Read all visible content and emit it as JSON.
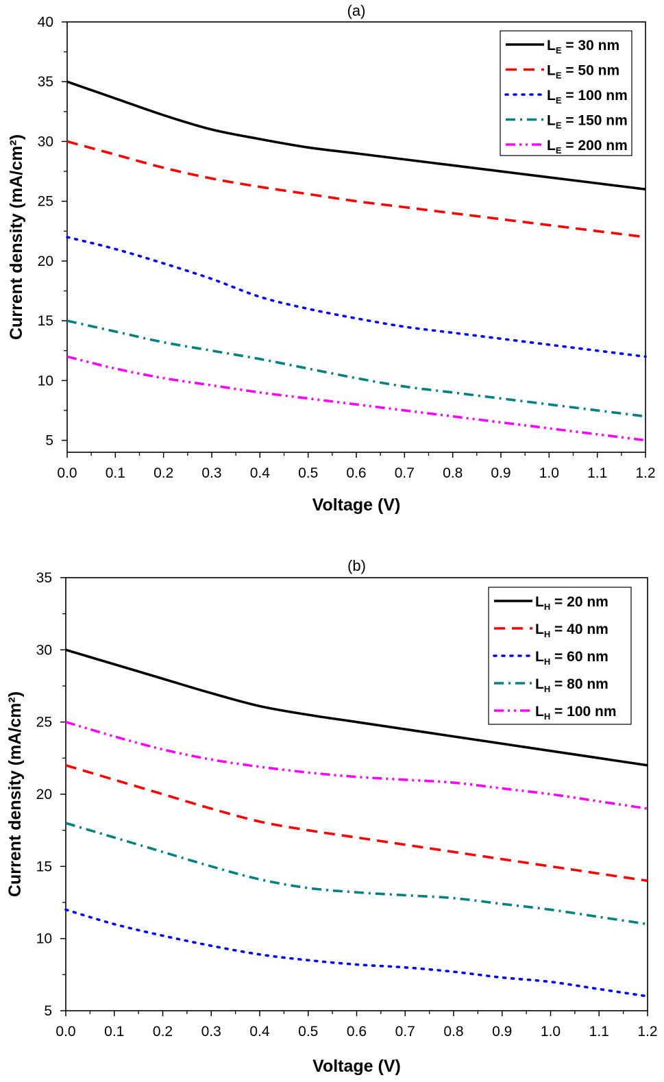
{
  "chart_data": [
    {
      "type": "line",
      "title": "(a)",
      "xlabel": "Voltage (V)",
      "ylabel": "Current density (mA/cm²)",
      "xlim": [
        0.0,
        1.2
      ],
      "ylim": [
        4,
        40
      ],
      "xticks": [
        "0.0",
        "0.1",
        "0.2",
        "0.3",
        "0.4",
        "0.5",
        "0.6",
        "0.7",
        "0.8",
        "0.9",
        "1.0",
        "1.1",
        "1.2"
      ],
      "yticks": [
        "5",
        "10",
        "15",
        "20",
        "25",
        "30",
        "35",
        "40"
      ],
      "legend_position": "top-right",
      "legend_var": "L",
      "legend_sub": "E",
      "x": [
        0.0,
        0.1,
        0.2,
        0.3,
        0.4,
        0.5,
        0.6,
        0.7,
        0.8,
        0.9,
        1.0,
        1.1,
        1.2
      ],
      "series": [
        {
          "name": "LE = 30 nm",
          "value_text": " = 30 nm",
          "color": "#000000",
          "style": "solid",
          "values": [
            35.0,
            33.6,
            32.2,
            31.0,
            30.2,
            29.5,
            29.0,
            28.5,
            28.0,
            27.5,
            27.0,
            26.5,
            26.0
          ]
        },
        {
          "name": "LE = 50 nm",
          "value_text": " = 50 nm",
          "color": "#ff0000",
          "style": "dash",
          "values": [
            30.0,
            28.9,
            27.8,
            26.9,
            26.2,
            25.6,
            25.0,
            24.5,
            24.0,
            23.5,
            23.0,
            22.5,
            22.0
          ]
        },
        {
          "name": "LE = 100 nm",
          "value_text": " = 100 nm",
          "color": "#0000ff",
          "style": "dot",
          "values": [
            22.0,
            21.0,
            19.8,
            18.5,
            17.0,
            16.0,
            15.2,
            14.5,
            14.0,
            13.5,
            13.0,
            12.5,
            12.0
          ]
        },
        {
          "name": "LE = 150 nm",
          "value_text": " = 150 nm",
          "color": "#008080",
          "style": "dashdot",
          "values": [
            15.0,
            14.1,
            13.2,
            12.5,
            11.8,
            11.0,
            10.2,
            9.5,
            9.0,
            8.5,
            8.0,
            7.5,
            7.0
          ]
        },
        {
          "name": "LE = 200 nm",
          "value_text": " = 200 nm",
          "color": "#ff00ff",
          "style": "dashdotdot",
          "values": [
            12.0,
            11.0,
            10.2,
            9.6,
            9.0,
            8.5,
            8.0,
            7.5,
            7.0,
            6.5,
            6.0,
            5.5,
            5.0
          ]
        }
      ]
    },
    {
      "type": "line",
      "title": "(b)",
      "xlabel": "Voltage (V)",
      "ylabel": "Current density (mA/cm²)",
      "xlim": [
        0.0,
        1.2
      ],
      "ylim": [
        5,
        35
      ],
      "xticks": [
        "0.0",
        "0.1",
        "0.2",
        "0.3",
        "0.4",
        "0.5",
        "0.6",
        "0.7",
        "0.8",
        "0.9",
        "1.0",
        "1.1",
        "1.2"
      ],
      "yticks": [
        "5",
        "10",
        "15",
        "20",
        "25",
        "30",
        "35"
      ],
      "legend_position": "top-right",
      "legend_var": "L",
      "legend_sub": "H",
      "x": [
        0.0,
        0.1,
        0.2,
        0.3,
        0.4,
        0.5,
        0.6,
        0.7,
        0.8,
        0.9,
        1.0,
        1.1,
        1.2
      ],
      "series": [
        {
          "name": "LH = 20 nm",
          "value_text": " = 20 nm",
          "color": "#000000",
          "style": "solid",
          "values": [
            30.0,
            29.0,
            28.0,
            27.0,
            26.1,
            25.5,
            25.0,
            24.5,
            24.0,
            23.5,
            23.0,
            22.5,
            22.0
          ]
        },
        {
          "name": "LH = 40 nm",
          "value_text": " = 40 nm",
          "color": "#ff0000",
          "style": "dash",
          "values": [
            22.0,
            21.0,
            20.0,
            19.0,
            18.1,
            17.5,
            17.0,
            16.5,
            16.0,
            15.5,
            15.0,
            14.5,
            14.0
          ]
        },
        {
          "name": "LH = 60 nm",
          "value_text": " = 60 nm",
          "color": "#0000ff",
          "style": "dot",
          "values": [
            12.0,
            11.0,
            10.2,
            9.5,
            8.9,
            8.5,
            8.2,
            8.0,
            7.7,
            7.3,
            7.0,
            6.5,
            6.0
          ]
        },
        {
          "name": "LH = 80 nm",
          "value_text": " = 80 nm",
          "color": "#008080",
          "style": "dashdot",
          "values": [
            18.0,
            17.0,
            16.0,
            15.0,
            14.1,
            13.5,
            13.2,
            13.0,
            12.8,
            12.4,
            12.0,
            11.5,
            11.0
          ]
        },
        {
          "name": "LH = 100 nm",
          "value_text": " = 100 nm",
          "color": "#ff00ff",
          "style": "dashdotdot",
          "values": [
            25.0,
            24.0,
            23.1,
            22.4,
            21.9,
            21.5,
            21.2,
            21.0,
            20.8,
            20.4,
            20.0,
            19.5,
            19.0
          ]
        }
      ]
    }
  ]
}
